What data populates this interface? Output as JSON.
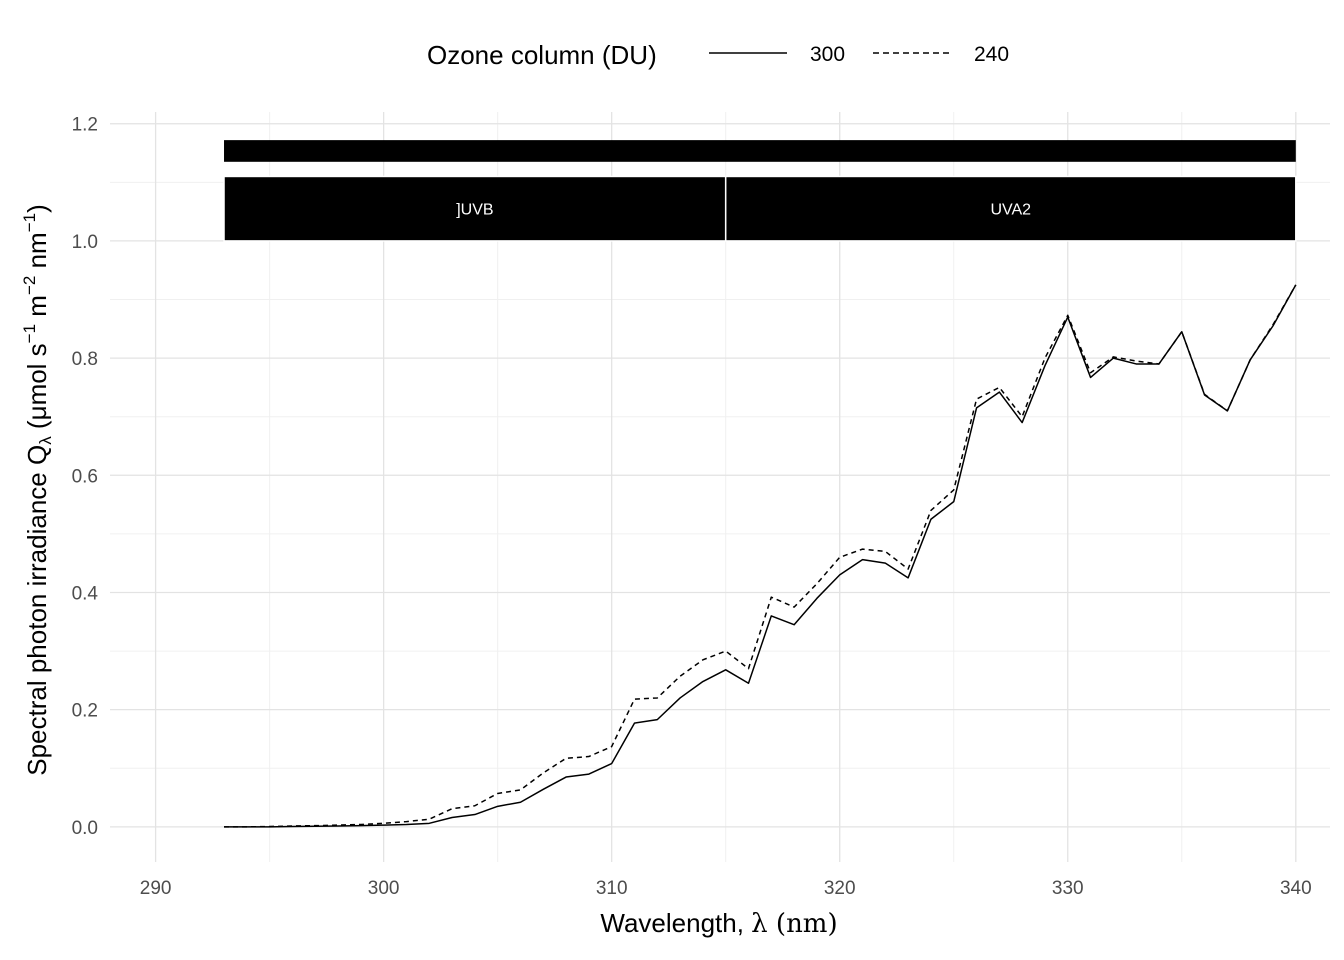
{
  "chart_data": {
    "type": "line",
    "xlabel_text": "Wavelength, ",
    "xlabel_symbol": "λ",
    "xlabel_unit": " (nm)",
    "ylabel": {
      "pre": "Spectral  photon  irradiance  Q",
      "sub": "λ",
      "unit1": "  (μmol s",
      "sup1": "−1",
      "unit2": " m",
      "sup2": "−2",
      "unit3": " nm",
      "sup3": "−1",
      "unit4": ")"
    },
    "xlim": [
      288,
      341.5
    ],
    "ylim": [
      -0.06,
      1.22
    ],
    "x_ticks": [
      290,
      300,
      310,
      320,
      330,
      340
    ],
    "x_tick_labels": [
      "290",
      "300",
      "310",
      "320",
      "330",
      "340"
    ],
    "y_ticks": [
      0.0,
      0.2,
      0.4,
      0.6,
      0.8,
      1.0,
      1.2
    ],
    "y_tick_labels": [
      "0.0",
      "0.2",
      "0.4",
      "0.6",
      "0.8",
      "1.0",
      "1.2"
    ],
    "grid": true,
    "legend": {
      "title": "Ozone column (DU)",
      "position": "top",
      "entries": [
        {
          "label": "300",
          "linetype": "solid"
        },
        {
          "label": "240",
          "linetype": "dashed"
        }
      ]
    },
    "bands": {
      "top_bar": {
        "x": [
          293,
          340
        ],
        "y": [
          1.135,
          1.172
        ]
      },
      "regions": [
        {
          "label": "]UVB",
          "x": [
            293,
            315
          ],
          "y": [
            1.0,
            1.11
          ]
        },
        {
          "label": "UVA2",
          "x": [
            315,
            340
          ],
          "y": [
            1.0,
            1.11
          ]
        }
      ]
    },
    "x": [
      293,
      294,
      295,
      296,
      297,
      298,
      299,
      300,
      301,
      302,
      303,
      304,
      305,
      306,
      307,
      308,
      309,
      310,
      311,
      312,
      313,
      314,
      315,
      316,
      317,
      318,
      319,
      320,
      321,
      322,
      323,
      324,
      325,
      326,
      327,
      328,
      329,
      330,
      331,
      332,
      333,
      334,
      335,
      336,
      337,
      338,
      339,
      340
    ],
    "series": [
      {
        "name": "300",
        "linetype": "solid",
        "values": [
          0.0,
          0.0,
          0.0,
          0.0005,
          0.001,
          0.0015,
          0.002,
          0.003,
          0.004,
          0.006,
          0.016,
          0.021,
          0.035,
          0.042,
          0.064,
          0.085,
          0.09,
          0.108,
          0.177,
          0.183,
          0.22,
          0.248,
          0.268,
          0.245,
          0.36,
          0.345,
          0.39,
          0.43,
          0.456,
          0.45,
          0.425,
          0.525,
          0.555,
          0.715,
          0.742,
          0.69,
          0.787,
          0.87,
          0.767,
          0.8,
          0.79,
          0.79,
          0.845,
          0.737,
          0.71,
          0.797,
          0.855,
          0.925
        ]
      },
      {
        "name": "240",
        "linetype": "dashed",
        "values": [
          0.0,
          0.0,
          0.0005,
          0.0015,
          0.002,
          0.003,
          0.004,
          0.006,
          0.009,
          0.013,
          0.031,
          0.036,
          0.057,
          0.063,
          0.092,
          0.117,
          0.12,
          0.137,
          0.218,
          0.22,
          0.257,
          0.285,
          0.3,
          0.27,
          0.392,
          0.375,
          0.415,
          0.46,
          0.474,
          0.47,
          0.44,
          0.54,
          0.575,
          0.73,
          0.75,
          0.7,
          0.8,
          0.873,
          0.775,
          0.802,
          0.795,
          0.79,
          0.845,
          0.738,
          0.71,
          0.797,
          0.857,
          0.925
        ]
      }
    ]
  }
}
